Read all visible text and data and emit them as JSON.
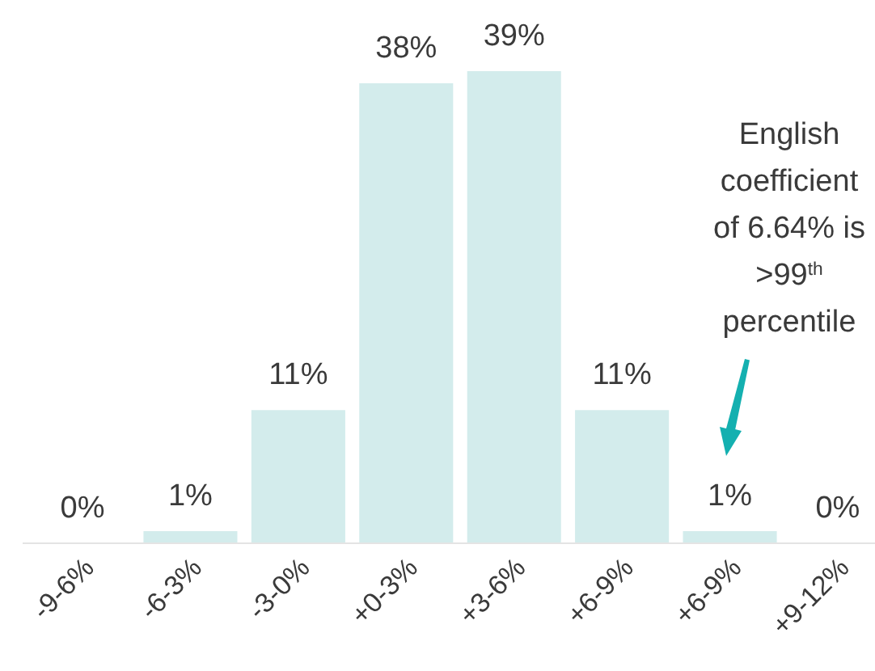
{
  "chart_data": {
    "type": "bar",
    "categories": [
      "-9-6%",
      "-6-3%",
      "-3-0%",
      "+0-3%",
      "+3-6%",
      "+6-9%",
      "+6-9%",
      "+9-12%"
    ],
    "values": [
      0,
      1,
      11,
      38,
      39,
      11,
      1,
      0
    ],
    "value_labels": [
      "0%",
      "1%",
      "11%",
      "38%",
      "39%",
      "11%",
      "1%",
      "0%"
    ],
    "color": "#d3ecec",
    "annotations": [
      "English coefficient of 6.64% is >99$^{th}$ percentile"
    ]
  }
}
